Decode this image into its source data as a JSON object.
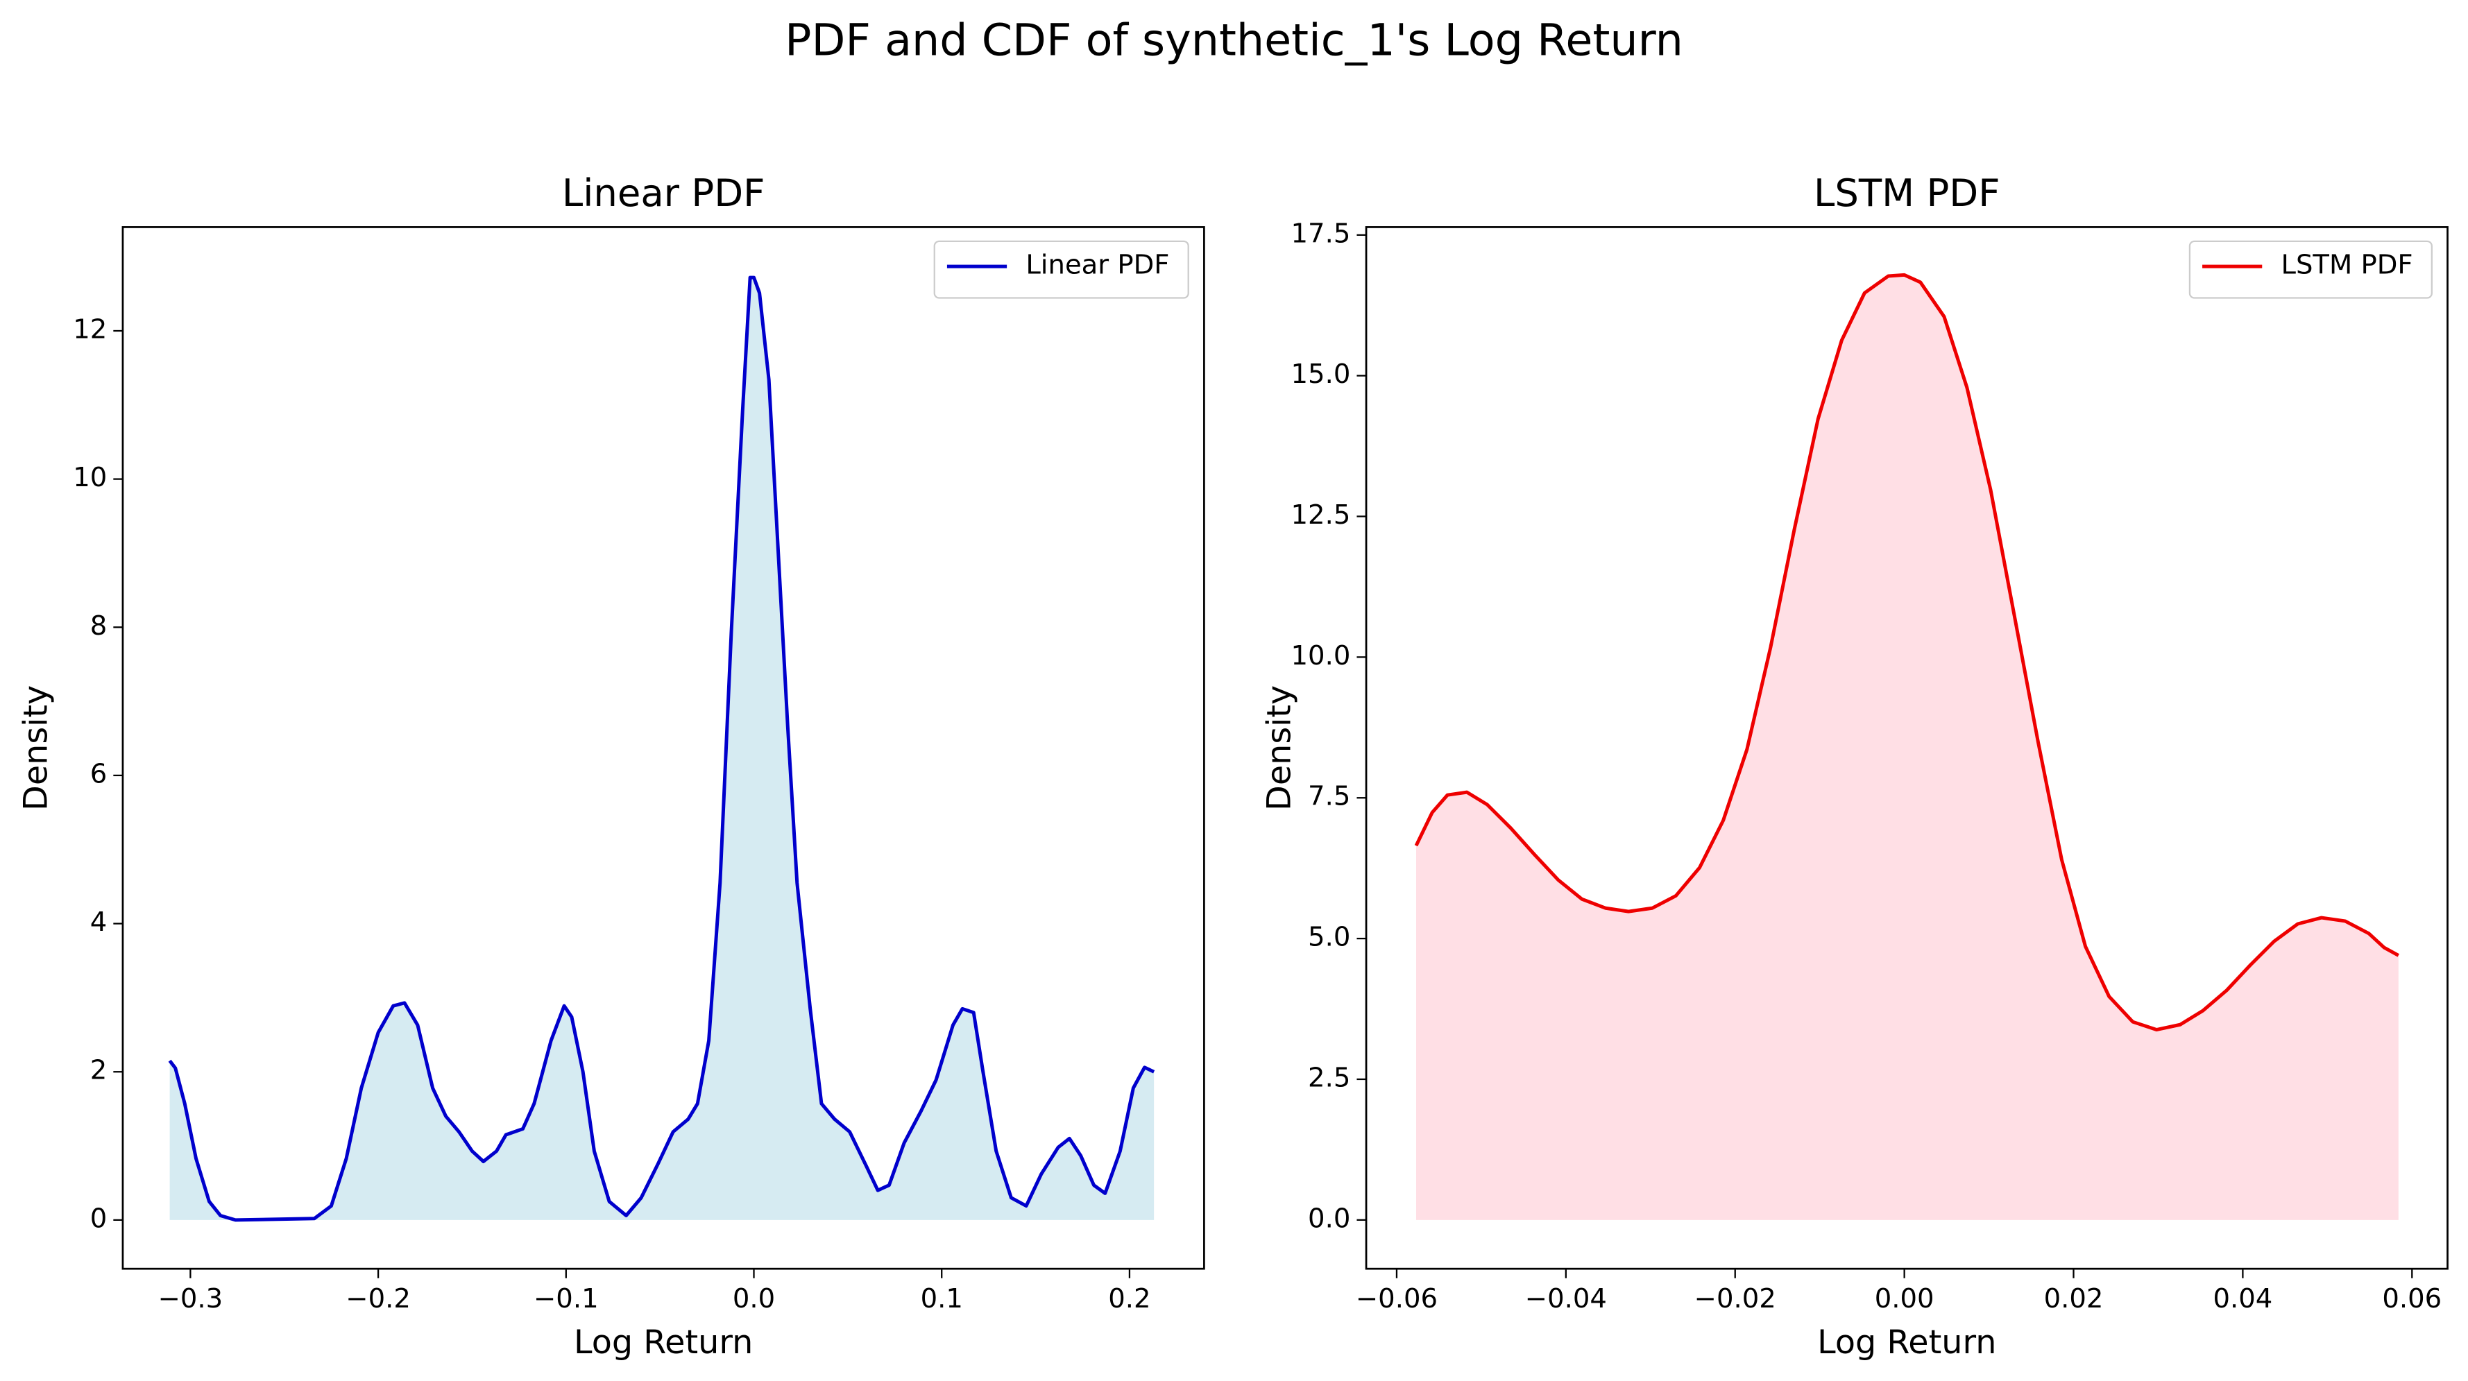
{
  "title": "PDF and CDF of synthetic_1's Log Return",
  "chart_data": [
    {
      "type": "line",
      "title": "Linear PDF",
      "x_label": "Log Return",
      "y_label": "Density",
      "x": [
        -0.311,
        -0.308,
        -0.303,
        -0.297,
        -0.29,
        -0.284,
        -0.276,
        -0.234,
        -0.225,
        -0.217,
        -0.209,
        -0.2,
        -0.192,
        -0.186,
        -0.179,
        -0.171,
        -0.164,
        -0.157,
        -0.15,
        -0.144,
        -0.137,
        -0.132,
        -0.123,
        -0.117,
        -0.108,
        -0.101,
        -0.097,
        -0.091,
        -0.085,
        -0.077,
        -0.068,
        -0.06,
        -0.051,
        -0.043,
        -0.035,
        -0.03,
        -0.024,
        -0.018,
        -0.012,
        -0.006,
        -0.002,
        0.0,
        0.003,
        0.008,
        0.013,
        0.018,
        0.023,
        0.03,
        0.036,
        0.043,
        0.051,
        0.06,
        0.066,
        0.072,
        0.08,
        0.089,
        0.097,
        0.106,
        0.111,
        0.117,
        0.122,
        0.129,
        0.137,
        0.145,
        0.153,
        0.162,
        0.168,
        0.174,
        0.181,
        0.187,
        0.195,
        0.202,
        0.208,
        0.213
      ],
      "series": [
        {
          "name": "Linear PDF",
          "color": "#0000cc",
          "fill_color": "#add8e6",
          "values": [
            2.15,
            2.05,
            1.57,
            0.83,
            0.25,
            0.06,
            0,
            0.02,
            0.19,
            0.83,
            1.78,
            2.53,
            2.89,
            2.93,
            2.63,
            1.78,
            1.4,
            1.19,
            0.93,
            0.79,
            0.93,
            1.15,
            1.23,
            1.57,
            2.42,
            2.89,
            2.74,
            2.0,
            0.93,
            0.25,
            0.06,
            0.3,
            0.76,
            1.19,
            1.36,
            1.57,
            2.42,
            4.55,
            7.94,
            10.92,
            12.72,
            12.72,
            12.51,
            11.34,
            9.0,
            6.67,
            4.55,
            2.85,
            1.57,
            1.36,
            1.19,
            0.72,
            0.4,
            0.47,
            1.04,
            1.47,
            1.89,
            2.63,
            2.85,
            2.8,
            2.0,
            0.93,
            0.3,
            0.19,
            0.62,
            0.98,
            1.1,
            0.87,
            0.47,
            0.36,
            0.93,
            1.78,
            2.06,
            2.0
          ]
        }
      ],
      "xlim": [
        -0.336,
        0.2397
      ],
      "ylim": [
        -0.658,
        13.4
      ],
      "xticks": [
        {
          "value": -0.3,
          "label": "−0.3"
        },
        {
          "value": -0.2,
          "label": "−0.2"
        },
        {
          "value": -0.1,
          "label": "−0.1"
        },
        {
          "value": 0,
          "label": "0.0"
        },
        0.1,
        0.2
      ],
      "yticks": [
        0,
        2,
        4,
        6,
        8,
        10,
        12
      ],
      "legend": "upper right"
    },
    {
      "type": "line",
      "title": "LSTM PDF",
      "x_label": "Log Return",
      "y_label": "Density",
      "x": [
        -0.0577,
        -0.0558,
        -0.054,
        -0.0517,
        -0.0493,
        -0.0465,
        -0.0437,
        -0.0409,
        -0.0381,
        -0.0353,
        -0.0326,
        -0.0298,
        -0.027,
        -0.0242,
        -0.0214,
        -0.0186,
        -0.0158,
        -0.013,
        -0.0102,
        -0.0074,
        -0.0047,
        -0.0019,
        0.0,
        0.0019,
        0.0047,
        0.0074,
        0.0102,
        0.013,
        0.0158,
        0.0186,
        0.0214,
        0.0242,
        0.027,
        0.0298,
        0.0326,
        0.0353,
        0.0381,
        0.0409,
        0.0437,
        0.0465,
        0.0493,
        0.0521,
        0.0549,
        0.0567,
        0.0584
      ],
      "series": [
        {
          "name": "LSTM PDF",
          "color": "#ee0000",
          "fill_color": "#ffc0cb",
          "values": [
            6.65,
            7.24,
            7.55,
            7.6,
            7.38,
            6.96,
            6.49,
            6.04,
            5.7,
            5.54,
            5.48,
            5.54,
            5.76,
            6.26,
            7.1,
            8.36,
            10.18,
            12.27,
            14.23,
            15.63,
            16.47,
            16.77,
            16.79,
            16.66,
            16.05,
            14.79,
            12.97,
            10.74,
            8.5,
            6.4,
            4.86,
            3.97,
            3.52,
            3.38,
            3.47,
            3.72,
            4.08,
            4.53,
            4.95,
            5.26,
            5.37,
            5.31,
            5.09,
            4.84,
            4.7
          ]
        }
      ],
      "xlim": [
        -0.0636,
        0.0642
      ],
      "ylim": [
        -0.867,
        17.64
      ],
      "xticks": [
        {
          "value": -0.06,
          "label": "−0.06"
        },
        {
          "value": -0.04,
          "label": "−0.04"
        },
        {
          "value": -0.02,
          "label": "−0.02"
        },
        {
          "value": 0,
          "label": "0.00"
        },
        0.02,
        0.04,
        0.06
      ],
      "yticks": [
        {
          "value": 0,
          "label": "0.0"
        },
        2.5,
        {
          "value": 5,
          "label": "5.0"
        },
        7.5,
        {
          "value": 10,
          "label": "10.0"
        },
        12.5,
        {
          "value": 15,
          "label": "15.0"
        },
        17.5
      ],
      "legend": "upper right"
    }
  ]
}
